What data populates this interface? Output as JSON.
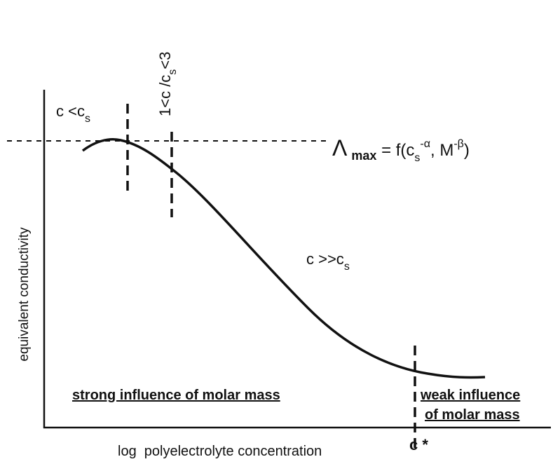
{
  "y_axis_label": "equivalent conductivity",
  "x_axis_label": "log  polyelectrolyte concentration",
  "critical_label": "c *",
  "regions": {
    "low": {
      "text": "c  <c",
      "sub": "s"
    },
    "transition": {
      "text": "1<c /c",
      "sub": "s",
      "tail": "<3"
    },
    "high": {
      "text": "c  >>c",
      "sub": "s"
    }
  },
  "max_label": {
    "symbol": "Λ",
    "sub": "max",
    "eq": " = f(c",
    "sub2": "s",
    "sup2": "-α",
    "mid": ", M",
    "sup3": "-β",
    "end": ")"
  },
  "influence": {
    "strong": "strong influence of molar mass",
    "weak_line1": "weak influence",
    "weak_line2": "of molar mass"
  }
}
